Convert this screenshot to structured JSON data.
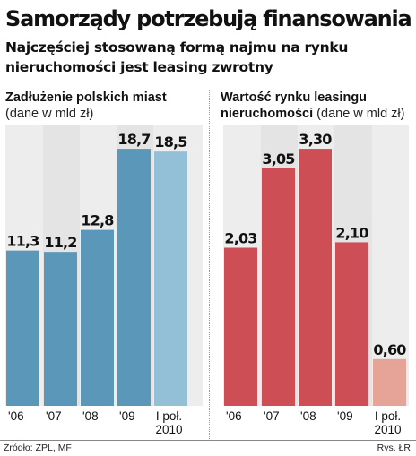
{
  "header": {
    "title": "Samorządy potrzebują finansowania",
    "subtitle": "Najczęściej stosowaną formą najmu na rynku nieruchomości jest leasing zwrotny"
  },
  "panels": {
    "left": {
      "title": "Zadłużenie polskich miast",
      "unit": "(dane w mld zł)"
    },
    "right": {
      "title": "Wartość rynku leasingu nieruchomości",
      "unit": "(dane w mld zł)"
    }
  },
  "footer": {
    "source": "Źródło: ZPL, MF",
    "credit": "Rys. ŁR"
  },
  "chart_data": [
    {
      "type": "bar",
      "title": "Zadłużenie polskich miast",
      "ylabel": "(dane w mld zł)",
      "categories": [
        "'06",
        "'07",
        "'08",
        "'09",
        "I poł. 2010"
      ],
      "values": [
        11.3,
        11.2,
        12.8,
        18.7,
        18.5
      ],
      "value_labels": [
        "11,3",
        "11,2",
        "12,8",
        "18,7",
        "18,5"
      ],
      "colors": [
        "#5b97b8",
        "#5b97b8",
        "#5b97b8",
        "#5b97b8",
        "#94c0d7"
      ],
      "ylim": [
        0,
        20.4
      ],
      "grid": false
    },
    {
      "type": "bar",
      "title": "Wartość rynku leasingu nieruchomości",
      "ylabel": "(dane w mld zł)",
      "categories": [
        "'06",
        "'07",
        "'08",
        "'09",
        "I poł. 2010"
      ],
      "values": [
        2.03,
        3.05,
        3.3,
        2.1,
        0.6
      ],
      "value_labels": [
        "2,03",
        "3,05",
        "3,30",
        "2,10",
        "0,60"
      ],
      "colors": [
        "#cd4f55",
        "#cd4f55",
        "#cd4f55",
        "#cd4f55",
        "#e6a397"
      ],
      "ylim": [
        0,
        3.6
      ],
      "grid": false
    }
  ]
}
